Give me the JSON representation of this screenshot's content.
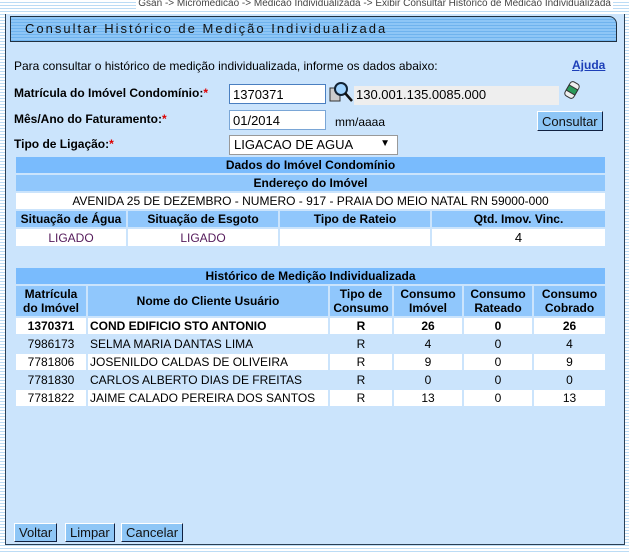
{
  "breadcrumb": "Gsan -> Micromedicao -> Medicao Individualizada -> Exibir Consultar Historico de Medicao Individualizada",
  "title": "Consultar Histórico de Medição Individualizada",
  "instruction": "Para consultar o histórico de medição individualizada, informe os dados abaixo:",
  "help_link": "Ajuda",
  "form": {
    "matricula_label": "Matrícula do Imóvel Condomínio:",
    "matricula_value": "1370371",
    "inscricao_value": "130.001.135.0085.000",
    "mesano_label": "Mês/Ano do Faturamento:",
    "mesano_value": "01/2014",
    "mesano_hint": "mm/aaaa",
    "tipo_label": "Tipo de Ligação:",
    "tipo_value": "LIGACAO DE AGUA",
    "required_mark": "*",
    "consultar": "Consultar"
  },
  "imovel": {
    "title": "Dados do Imóvel Condomínio",
    "endereco_label": "Endereço do Imóvel",
    "endereco": "AVENIDA 25 DE DEZEMBRO - NUMERO - 917 - PRAIA DO MEIO NATAL RN 59000-000",
    "headers": [
      "Situação de Água",
      "Situação de Esgoto",
      "Tipo de Rateio",
      "Qtd. Imov. Vinc."
    ],
    "values": [
      "LIGADO",
      "LIGADO",
      "",
      "4"
    ]
  },
  "historico": {
    "title": "Histórico de Medição Individualizada",
    "headers": [
      "Matrícula do Imóvel",
      "Nome do Cliente Usuário",
      "Tipo de Consumo",
      "Consumo Imóvel",
      "Consumo Rateado",
      "Consumo Cobrado"
    ],
    "rows": [
      [
        "1370371",
        "COND EDIFICIO STO ANTONIO",
        "R",
        "26",
        "0",
        "26"
      ],
      [
        "7986173",
        "SELMA MARIA DANTAS LIMA",
        "R",
        "4",
        "0",
        "4"
      ],
      [
        "7781806",
        "JOSENILDO CALDAS DE OLIVEIRA",
        "R",
        "9",
        "0",
        "9"
      ],
      [
        "7781830",
        "CARLOS ALBERTO DIAS DE FREITAS",
        "R",
        "0",
        "0",
        "0"
      ],
      [
        "7781822",
        "JAIME CALADO PEREIRA DOS SANTOS",
        "R",
        "13",
        "0",
        "13"
      ]
    ]
  },
  "buttons": {
    "voltar": "Voltar",
    "limpar": "Limpar",
    "cancelar": "Cancelar"
  }
}
